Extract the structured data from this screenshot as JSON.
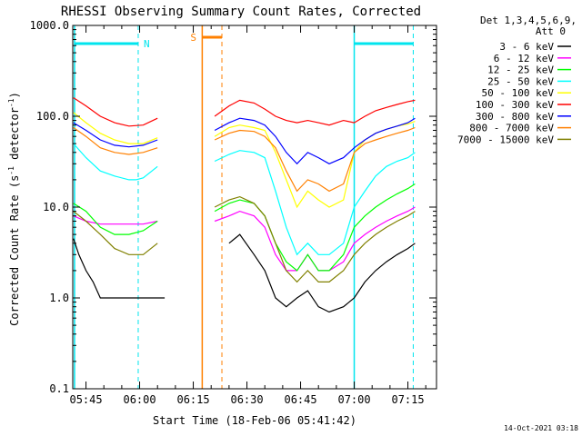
{
  "chart_data": {
    "type": "line",
    "title": "RHESSI Observing Summary Count Rates, Corrected",
    "xlabel": "Start Time (18-Feb-06 05:41:42)",
    "ylabel_main": "Corrected Count Rate (s",
    "ylabel_sup1": "-1",
    "ylabel_mid": " detector",
    "ylabel_sup2": "-1",
    "ylabel_end": ")",
    "yscale": "log",
    "ylim": [
      0.1,
      1000
    ],
    "xlim_minutes": [
      -3.7,
      98
    ],
    "yticks": [
      {
        "v": 1000,
        "label": "1000.0"
      },
      {
        "v": 100,
        "label": "100.0"
      },
      {
        "v": 10,
        "label": "10.0"
      },
      {
        "v": 1,
        "label": "1.0"
      },
      {
        "v": 0.1,
        "label": "0.1"
      }
    ],
    "xticks": [
      {
        "t": 0,
        "label": "05:45"
      },
      {
        "t": 15,
        "label": "06:00"
      },
      {
        "t": 30,
        "label": "06:15"
      },
      {
        "t": 45,
        "label": "06:30"
      },
      {
        "t": 60,
        "label": "06:45"
      },
      {
        "t": 75,
        "label": "07:00"
      },
      {
        "t": 90,
        "label": "07:15"
      }
    ],
    "legend_header": [
      "Det 1,3,4,5,6,9,",
      "Att 0"
    ],
    "legend_position": "top-right",
    "series": [
      {
        "name": "3 - 6 keV",
        "color": "#000000",
        "x": [
          -3.5,
          -2,
          0,
          2,
          4,
          6,
          8,
          10,
          12,
          13,
          14,
          15,
          16,
          18,
          20,
          22,
          26,
          29,
          33,
          36,
          40,
          43,
          47,
          50,
          53,
          56,
          59,
          62,
          65,
          68,
          72,
          75,
          78,
          81,
          84,
          87,
          90,
          92
        ],
        "y": [
          4.5,
          3,
          2,
          1.5,
          1,
          1,
          1,
          1,
          1,
          1,
          1,
          1,
          1,
          1,
          1,
          1,
          null,
          null,
          null,
          null,
          4,
          5,
          3,
          2,
          1,
          0.8,
          1,
          1.2,
          0.8,
          0.7,
          0.8,
          1,
          1.5,
          2,
          2.5,
          3,
          3.5,
          4
        ]
      },
      {
        "name": "6 - 12 keV",
        "color": "#ff00ff",
        "x": [
          -3.5,
          0,
          4,
          8,
          12,
          16,
          20,
          26,
          29,
          33,
          36,
          40,
          43,
          47,
          50,
          53,
          56,
          59,
          62,
          65,
          68,
          72,
          75,
          78,
          81,
          84,
          87,
          90,
          92
        ],
        "y": [
          8,
          7,
          6.5,
          6.5,
          6.5,
          6.5,
          7,
          null,
          null,
          null,
          7,
          8,
          9,
          8,
          6,
          3,
          2,
          2,
          3,
          2,
          2,
          2.5,
          4,
          5,
          6,
          7,
          8,
          9,
          10
        ]
      },
      {
        "name": "12 - 25 keV",
        "color": "#00ff00",
        "x": [
          -3.5,
          0,
          4,
          8,
          12,
          16,
          20,
          26,
          29,
          33,
          36,
          40,
          43,
          47,
          50,
          53,
          56,
          59,
          62,
          65,
          68,
          72,
          75,
          78,
          81,
          84,
          87,
          90,
          92
        ],
        "y": [
          11,
          9,
          6,
          5,
          5,
          5.5,
          7,
          null,
          null,
          null,
          9,
          11,
          12,
          11,
          8,
          4,
          2.5,
          2,
          3,
          2,
          2,
          3,
          6,
          8,
          10,
          12,
          14,
          16,
          18
        ]
      },
      {
        "name": "25 - 50 keV",
        "color": "#00ffff",
        "x": [
          -3.5,
          0,
          4,
          8,
          12,
          14,
          16,
          20,
          26,
          29,
          33,
          36,
          40,
          43,
          47,
          50,
          53,
          56,
          59,
          62,
          65,
          68,
          72,
          75,
          78,
          81,
          84,
          87,
          90,
          92
        ],
        "y": [
          50,
          35,
          25,
          22,
          20,
          20,
          21,
          28,
          null,
          null,
          null,
          32,
          38,
          42,
          40,
          35,
          15,
          6,
          3,
          4,
          3,
          3,
          4,
          10,
          15,
          22,
          28,
          32,
          35,
          40
        ]
      },
      {
        "name": "50 - 100 keV",
        "color": "#ffff00",
        "x": [
          -3.5,
          0,
          4,
          8,
          12,
          16,
          20,
          26,
          29,
          33,
          36,
          40,
          43,
          47,
          50,
          53,
          56,
          59,
          62,
          65,
          68,
          72,
          75,
          78,
          81,
          84,
          87,
          90,
          92
        ],
        "y": [
          110,
          85,
          65,
          55,
          50,
          50,
          58,
          null,
          null,
          null,
          60,
          75,
          80,
          75,
          70,
          40,
          20,
          10,
          15,
          12,
          10,
          12,
          40,
          55,
          65,
          72,
          78,
          82,
          88
        ]
      },
      {
        "name": "100 - 300 keV",
        "color": "#ff0000",
        "x": [
          -3.5,
          0,
          4,
          8,
          12,
          16,
          20,
          26,
          29,
          33,
          36,
          40,
          43,
          47,
          50,
          53,
          56,
          59,
          62,
          65,
          68,
          72,
          75,
          78,
          81,
          84,
          87,
          90,
          92
        ],
        "y": [
          160,
          130,
          100,
          85,
          78,
          80,
          95,
          null,
          null,
          null,
          100,
          130,
          150,
          140,
          120,
          100,
          90,
          85,
          90,
          85,
          80,
          90,
          85,
          100,
          115,
          125,
          135,
          145,
          150
        ]
      },
      {
        "name": "300 - 800 keV",
        "color": "#0000ff",
        "x": [
          -3.5,
          0,
          4,
          8,
          12,
          16,
          20,
          26,
          29,
          33,
          36,
          40,
          43,
          47,
          50,
          53,
          56,
          59,
          62,
          65,
          68,
          72,
          75,
          78,
          81,
          84,
          87,
          90,
          92
        ],
        "y": [
          85,
          70,
          55,
          48,
          46,
          48,
          55,
          null,
          null,
          null,
          70,
          85,
          95,
          90,
          80,
          60,
          40,
          30,
          40,
          35,
          30,
          35,
          45,
          55,
          65,
          72,
          78,
          85,
          95
        ]
      },
      {
        "name": "800 - 7000 keV",
        "color": "#ff8000",
        "x": [
          -3.5,
          0,
          4,
          8,
          12,
          16,
          20,
          26,
          29,
          33,
          36,
          40,
          43,
          47,
          50,
          53,
          56,
          59,
          62,
          65,
          68,
          72,
          75,
          78,
          81,
          84,
          87,
          90,
          92
        ],
        "y": [
          75,
          60,
          45,
          40,
          38,
          40,
          45,
          null,
          null,
          null,
          55,
          65,
          70,
          68,
          60,
          45,
          25,
          15,
          20,
          18,
          15,
          18,
          40,
          50,
          55,
          60,
          65,
          70,
          75
        ]
      },
      {
        "name": "7000 - 15000 keV",
        "color": "#808000",
        "x": [
          -3.5,
          0,
          4,
          8,
          12,
          16,
          20,
          26,
          29,
          33,
          36,
          40,
          43,
          47,
          50,
          53,
          56,
          59,
          62,
          65,
          68,
          72,
          75,
          78,
          81,
          84,
          87,
          90,
          92
        ],
        "y": [
          9,
          7,
          5,
          3.5,
          3,
          3,
          4,
          null,
          null,
          null,
          10,
          12,
          13,
          11,
          8,
          4,
          2,
          1.5,
          2,
          1.5,
          1.5,
          2,
          3,
          4,
          5,
          6,
          7,
          8,
          9
        ]
      }
    ],
    "annotations": {
      "n_label": "N",
      "s_label": "S",
      "night_bars": [
        {
          "t0": -3.2,
          "t1": 14.6
        },
        {
          "t0": 75,
          "t1": 91.5
        }
      ],
      "saa_bar": {
        "t0": 32.5,
        "t1": 38
      },
      "cyan_lines_solid": [
        -3.2,
        75
      ],
      "cyan_lines_dashed": [
        14.6,
        91.5
      ],
      "orange_line_solid": 32.5,
      "orange_line_dashed": 38
    },
    "colors": {
      "night": "#00e5ee",
      "saa": "#ff8000",
      "axis": "#000000"
    }
  },
  "footer": {
    "date": "14-Oct-2021 03:18"
  }
}
